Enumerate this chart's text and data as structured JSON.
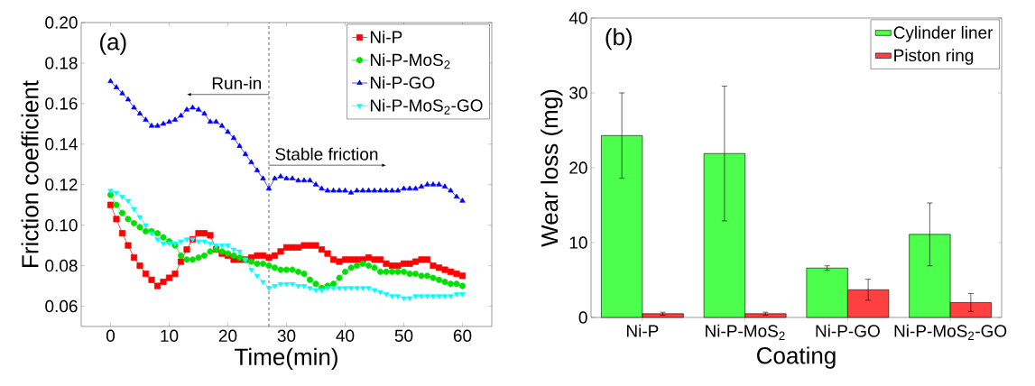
{
  "chart_data": [
    {
      "type": "line",
      "xlabel": "Time(min)",
      "ylabel": "Friction coefficient",
      "legend": "top right",
      "xlim": [
        -5,
        65
      ],
      "ylim": [
        0.05,
        0.2
      ],
      "xticks": [
        0,
        10,
        20,
        30,
        40,
        50,
        60
      ],
      "yticks": [
        {
          "value": 0.06,
          "label": "0.06"
        },
        {
          "value": 0.08,
          "label": "0.08"
        },
        {
          "value": 0.1,
          "label": "0.10"
        },
        {
          "value": 0.12,
          "label": "0.12"
        },
        {
          "value": 0.14,
          "label": "0.14"
        },
        {
          "value": 0.16,
          "label": "0.16"
        },
        {
          "value": 0.18,
          "label": "0.18"
        },
        {
          "value": 0.2,
          "label": "0.20"
        }
      ],
      "x": [
        0,
        1,
        2,
        3,
        4,
        5,
        6,
        7,
        8,
        9,
        10,
        11,
        12,
        13,
        14,
        15,
        16,
        17,
        18,
        19,
        20,
        21,
        22,
        23,
        24,
        25,
        26,
        27,
        28,
        29,
        30,
        31,
        32,
        33,
        34,
        35,
        36,
        37,
        38,
        39,
        40,
        41,
        42,
        43,
        44,
        45,
        46,
        47,
        48,
        49,
        50,
        51,
        52,
        53,
        54,
        55,
        56,
        57,
        58,
        59,
        60
      ],
      "series": [
        {
          "name": "Ni-P",
          "color": "#ff0000",
          "marker": "square",
          "values": [
            0.11,
            0.103,
            0.096,
            0.09,
            0.084,
            0.08,
            0.076,
            0.073,
            0.07,
            0.072,
            0.074,
            0.076,
            0.082,
            0.088,
            0.093,
            0.096,
            0.096,
            0.095,
            0.088,
            0.086,
            0.085,
            0.083,
            0.083,
            0.083,
            0.084,
            0.085,
            0.085,
            0.084,
            0.085,
            0.087,
            0.089,
            0.089,
            0.089,
            0.09,
            0.09,
            0.09,
            0.088,
            0.086,
            0.083,
            0.082,
            0.083,
            0.083,
            0.083,
            0.083,
            0.084,
            0.083,
            0.083,
            0.081,
            0.08,
            0.08,
            0.081,
            0.081,
            0.082,
            0.083,
            0.083,
            0.08,
            0.079,
            0.078,
            0.077,
            0.076,
            0.075
          ]
        },
        {
          "name": "Ni-P-MoS$_{2}$",
          "color": "#00e000",
          "marker": "circle",
          "values": [
            0.115,
            0.11,
            0.106,
            0.103,
            0.101,
            0.099,
            0.097,
            0.097,
            0.096,
            0.094,
            0.092,
            0.09,
            0.085,
            0.083,
            0.083,
            0.084,
            0.085,
            0.087,
            0.088,
            0.087,
            0.086,
            0.085,
            0.084,
            0.083,
            0.082,
            0.081,
            0.081,
            0.08,
            0.079,
            0.078,
            0.078,
            0.078,
            0.077,
            0.076,
            0.073,
            0.071,
            0.069,
            0.07,
            0.071,
            0.074,
            0.077,
            0.079,
            0.08,
            0.081,
            0.08,
            0.079,
            0.077,
            0.077,
            0.077,
            0.077,
            0.077,
            0.076,
            0.076,
            0.075,
            0.075,
            0.074,
            0.073,
            0.072,
            0.071,
            0.071,
            0.07
          ]
        },
        {
          "name": "Ni-P-GO",
          "color": "#0000ff",
          "marker": "triangle",
          "values": [
            0.171,
            0.168,
            0.165,
            0.162,
            0.158,
            0.155,
            0.152,
            0.149,
            0.149,
            0.15,
            0.151,
            0.152,
            0.154,
            0.157,
            0.158,
            0.157,
            0.155,
            0.151,
            0.151,
            0.149,
            0.146,
            0.143,
            0.139,
            0.135,
            0.131,
            0.127,
            0.123,
            0.118,
            0.123,
            0.124,
            0.123,
            0.123,
            0.122,
            0.122,
            0.122,
            0.12,
            0.118,
            0.117,
            0.117,
            0.117,
            0.117,
            0.116,
            0.117,
            0.117,
            0.117,
            0.117,
            0.117,
            0.117,
            0.117,
            0.117,
            0.118,
            0.118,
            0.118,
            0.119,
            0.12,
            0.12,
            0.12,
            0.119,
            0.117,
            0.114,
            0.112
          ]
        },
        {
          "name": "Ni-P-MoS$_{2}$-GO",
          "color": "#00ffff",
          "marker": "triangle-down",
          "values": [
            0.117,
            0.116,
            0.114,
            0.112,
            0.108,
            0.104,
            0.1,
            0.096,
            0.093,
            0.091,
            0.091,
            0.091,
            0.092,
            0.093,
            0.093,
            0.092,
            0.092,
            0.091,
            0.09,
            0.09,
            0.09,
            0.088,
            0.087,
            0.083,
            0.078,
            0.075,
            0.072,
            0.069,
            0.07,
            0.071,
            0.071,
            0.071,
            0.07,
            0.07,
            0.069,
            0.068,
            0.068,
            0.069,
            0.069,
            0.069,
            0.069,
            0.069,
            0.069,
            0.069,
            0.069,
            0.068,
            0.067,
            0.066,
            0.065,
            0.065,
            0.064,
            0.064,
            0.065,
            0.065,
            0.065,
            0.065,
            0.065,
            0.065,
            0.065,
            0.066,
            0.066
          ]
        }
      ],
      "ref_lines": [
        {
          "axis": "x",
          "value": 27,
          "line_style": "dashed",
          "color": "#000000"
        }
      ],
      "annotations": [
        "(a)",
        "Run-in",
        "Stable friction"
      ]
    },
    {
      "type": "bar",
      "xlabel": "Coating",
      "ylabel": "Wear loss (mg)",
      "legend": "top right",
      "categories": [
        "Ni-P",
        "Ni-P-MoS$_{2}$",
        "Ni-P-GO",
        "Ni-P-MoS$_{2}$-GO"
      ],
      "ylim": [
        0,
        40
      ],
      "yticks": [
        0,
        10,
        20,
        30,
        40
      ],
      "series": [
        {
          "name": "Cylinder liner",
          "color": "#4cff4c",
          "values": [
            24.3,
            21.9,
            6.6,
            11.1
          ],
          "errors": [
            [
              18.6,
              30.0
            ],
            [
              12.9,
              30.9
            ],
            [
              6.3,
              6.9
            ],
            [
              6.9,
              15.3
            ]
          ]
        },
        {
          "name": "Piston ring",
          "color": "#ff4040",
          "values": [
            0.5,
            0.5,
            3.7,
            2.0
          ],
          "errors": [
            [
              0.3,
              0.7
            ],
            [
              0.3,
              0.7
            ],
            [
              2.3,
              5.1
            ],
            [
              0.8,
              3.2
            ]
          ]
        }
      ],
      "annotations": [
        "(b)"
      ]
    }
  ]
}
